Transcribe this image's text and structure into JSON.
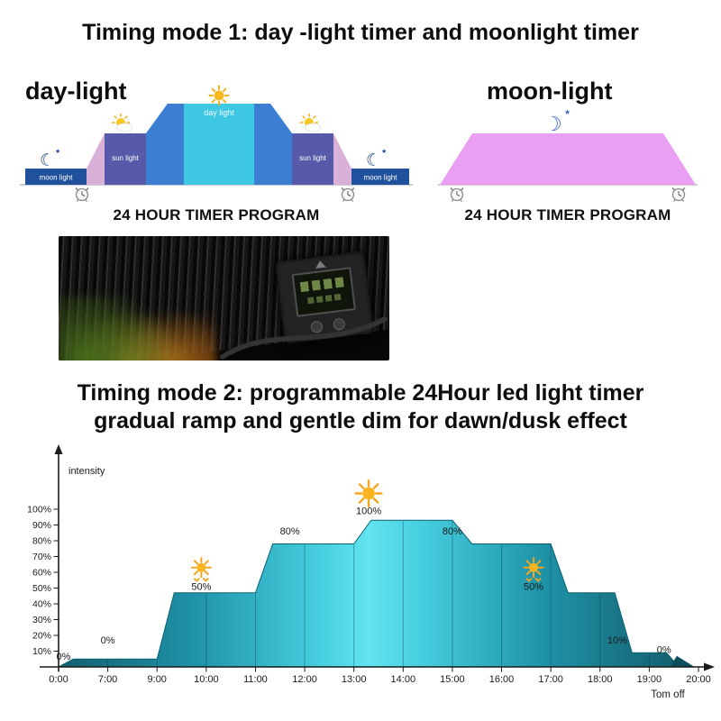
{
  "icons": {
    "moon_filled": "☾",
    "moon_outline": "☽",
    "star": "★"
  },
  "mode1": {
    "title": "Timing mode 1: day -light timer and moonlight timer",
    "day": {
      "heading": "day-light",
      "moon_left": "moon light",
      "sun_left": "sun light",
      "day_label": "day light",
      "sun_right": "sun light",
      "moon_right": "moon light",
      "caption": "24 HOUR TIMER PROGRAM"
    },
    "moon": {
      "heading": "moon-light",
      "caption": "24 HOUR TIMER PROGRAM"
    }
  },
  "mode2": {
    "title_line1": "Timing mode 2: programmable 24Hour led light timer",
    "title_line2": "gradual ramp and gentle dim for dawn/dusk effect"
  },
  "chart_data": {
    "type": "area",
    "title": "",
    "xlabel": "",
    "ylabel": "intensity",
    "ylim": [
      0,
      100
    ],
    "grid": false,
    "x_ticks": [
      "0:00",
      "7:00",
      "9:00",
      "10:00",
      "11:00",
      "12:00",
      "13:00",
      "14:00",
      "15:00",
      "16:00",
      "17:00",
      "18:00",
      "19:00",
      "20:00"
    ],
    "y_ticks": [
      "100%",
      "90%",
      "80%",
      "70%",
      "60%",
      "50%",
      "40%",
      "30%",
      "20%",
      "10%"
    ],
    "steps": [
      [
        0,
        0
      ],
      [
        0.3,
        5
      ],
      [
        2,
        5
      ],
      [
        2.35,
        47
      ],
      [
        4,
        47
      ],
      [
        4.35,
        78
      ],
      [
        6,
        78
      ],
      [
        6.35,
        93
      ],
      [
        8,
        93
      ],
      [
        8.4,
        78
      ],
      [
        10,
        78
      ],
      [
        10.35,
        47
      ],
      [
        11.3,
        47
      ],
      [
        11.65,
        9
      ],
      [
        12.35,
        9
      ],
      [
        12.6,
        0
      ]
    ],
    "plateau_percent_labels": [
      {
        "t": 0.1,
        "v": 4.5,
        "text": "0%"
      },
      {
        "t": 1.0,
        "v": 15,
        "text": "0%"
      },
      {
        "t": 2.9,
        "v": 49,
        "text": "50%"
      },
      {
        "t": 4.7,
        "v": 84,
        "text": "80%"
      },
      {
        "t": 6.3,
        "v": 97,
        "text": "100%"
      },
      {
        "t": 8.0,
        "v": 84,
        "text": "80%"
      },
      {
        "t": 9.65,
        "v": 49,
        "text": "50%"
      },
      {
        "t": 11.35,
        "v": 15,
        "text": "10%"
      },
      {
        "t": 12.3,
        "v": 9,
        "text": "0%"
      }
    ],
    "icons": [
      {
        "t": 2.9,
        "v": 63,
        "kind": "sunrise",
        "name": "sunrise-icon"
      },
      {
        "t": 6.3,
        "v": 110,
        "kind": "sun",
        "name": "noon-sun-icon"
      },
      {
        "t": 9.65,
        "v": 63,
        "kind": "sunset",
        "name": "sunset-icon"
      }
    ],
    "end_wedge": [
      [
        12.42,
        0
      ],
      [
        12.56,
        7
      ],
      [
        12.92,
        0
      ]
    ],
    "footer_label": "Tom off",
    "gradient": [
      {
        "o": 0,
        "c": "#145f6e"
      },
      {
        "o": 0.22,
        "c": "#1f93a8"
      },
      {
        "o": 0.42,
        "c": "#46cfe0"
      },
      {
        "o": 0.5,
        "c": "#63e3ef"
      },
      {
        "o": 0.58,
        "c": "#46cfe0"
      },
      {
        "o": 0.78,
        "c": "#1f93a8"
      },
      {
        "o": 1,
        "c": "#145f6e"
      }
    ]
  }
}
